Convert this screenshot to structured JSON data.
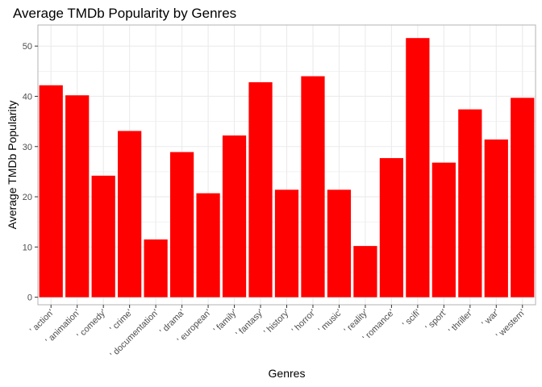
{
  "chart_data": {
    "type": "bar",
    "title": "Average TMDb Popularity by Genres",
    "xlabel": "Genres",
    "ylabel": "Average TMDb Popularity",
    "categories": [
      "' action'",
      "' animation'",
      "' comedy'",
      "' crime'",
      "' documentation'",
      "' drama'",
      "' european'",
      "' family'",
      "' fantasy'",
      "' history'",
      "' horror'",
      "' music'",
      "' reality'",
      "' romance'",
      "' scifi'",
      "' sport'",
      "' thriller'",
      "' war'",
      "' western'"
    ],
    "values": [
      42.2,
      40.2,
      24.2,
      33.1,
      11.5,
      28.9,
      20.7,
      32.2,
      42.8,
      21.4,
      44.0,
      21.4,
      10.2,
      27.7,
      51.6,
      26.8,
      37.4,
      31.4,
      39.7
    ],
    "ylim": [
      -1.5,
      54.2
    ],
    "yticks": [
      0,
      10,
      20,
      30,
      40,
      50
    ],
    "grid": true,
    "bar_color": "#ff0000",
    "grid_color": "#ebebeb",
    "panel_border_color": "#b3b3b3"
  }
}
